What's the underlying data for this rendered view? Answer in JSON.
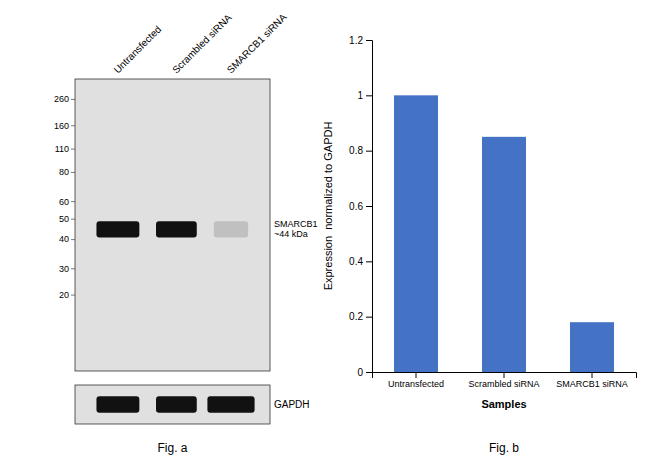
{
  "chart_data": [
    {
      "type": "western_blot",
      "title": "Fig. a",
      "categories": [
        "Untransfected",
        "Scrambled siRNA",
        "SMARCB1 siRNA"
      ],
      "yticks": [
        260,
        160,
        110,
        80,
        60,
        50,
        40,
        30,
        20
      ],
      "annotations": [
        "SMARCB1\n~44 kDa",
        "GAPDH"
      ],
      "color": "#e0e0e0"
    },
    {
      "type": "bar",
      "title": "Fig. b",
      "categories": [
        "Untransfected",
        "Scrambled siRNA",
        "SMARCB1 siRNA"
      ],
      "values": [
        1.0,
        0.85,
        0.18
      ],
      "color": "#4472C4",
      "xlabel": "Samples",
      "ylabel": "Expression  normalized to GAPDH",
      "ylim": [
        0,
        1.2
      ],
      "yticks": [
        0,
        0.2,
        0.4,
        0.6,
        0.8,
        1,
        1.2
      ],
      "grid": false
    }
  ]
}
